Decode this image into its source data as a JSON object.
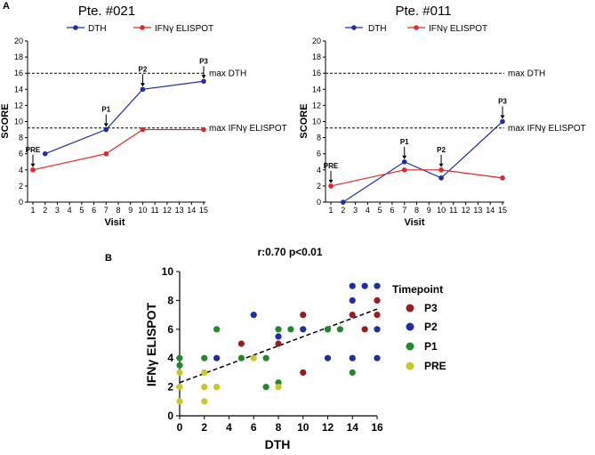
{
  "panels": {
    "a_label": "A",
    "b_label": "B"
  },
  "chart_data": [
    {
      "type": "line",
      "title": "Pte. #021",
      "xlabel": "Visit",
      "ylabel": "SCORE",
      "x_ticks": [
        1,
        2,
        3,
        4,
        5,
        6,
        7,
        8,
        9,
        10,
        11,
        12,
        13,
        14,
        15
      ],
      "y_ticks": [
        0,
        2,
        4,
        6,
        8,
        10,
        12,
        14,
        16,
        18,
        20
      ],
      "xlim": [
        1,
        15
      ],
      "ylim": [
        0,
        20
      ],
      "series": [
        {
          "name": "DTH",
          "color": "#1f2ea6",
          "x": [
            2,
            7,
            10,
            15
          ],
          "y": [
            6,
            9,
            14,
            15
          ]
        },
        {
          "name": "IFNγ ELISPOT",
          "color": "#e3262b",
          "x": [
            1,
            7,
            10,
            15
          ],
          "y": [
            4,
            6,
            9,
            9
          ]
        }
      ],
      "reference_lines": [
        {
          "label": "max DTH",
          "y": 16
        },
        {
          "label": "max IFNγ ELISPOT",
          "y": 9.2
        }
      ],
      "annotations": [
        {
          "text": "PRE",
          "x": 1,
          "y": 4
        },
        {
          "text": "P1",
          "x": 7,
          "y": 9
        },
        {
          "text": "P2",
          "x": 10,
          "y": 14
        },
        {
          "text": "P3",
          "x": 15,
          "y": 15
        }
      ]
    },
    {
      "type": "line",
      "title": "Pte. #011",
      "xlabel": "Visit",
      "ylabel": "SCORE",
      "x_ticks": [
        1,
        2,
        3,
        4,
        5,
        6,
        7,
        8,
        9,
        10,
        11,
        12,
        13,
        14,
        15
      ],
      "y_ticks": [
        0,
        2,
        4,
        6,
        8,
        10,
        12,
        14,
        16,
        18,
        20
      ],
      "xlim": [
        1,
        15
      ],
      "ylim": [
        0,
        20
      ],
      "series": [
        {
          "name": "DTH",
          "color": "#1f2ea6",
          "x": [
            2,
            7,
            10,
            15
          ],
          "y": [
            0,
            5,
            3,
            10
          ]
        },
        {
          "name": "IFNγ ELISPOT",
          "color": "#e3262b",
          "x": [
            1,
            7,
            10,
            15
          ],
          "y": [
            2,
            4,
            4,
            3
          ]
        }
      ],
      "reference_lines": [
        {
          "label": "max DTH",
          "y": 16
        },
        {
          "label": "max IFNγ ELISPOT",
          "y": 9.2
        }
      ],
      "annotations": [
        {
          "text": "PRE",
          "x": 1,
          "y": 2
        },
        {
          "text": "P1",
          "x": 7,
          "y": 5
        },
        {
          "text": "P2",
          "x": 10,
          "y": 4
        },
        {
          "text": "P3",
          "x": 15,
          "y": 10
        }
      ]
    },
    {
      "type": "scatter",
      "title": "r:0.70  p<0.01",
      "xlabel": "DTH",
      "ylabel": "IFNγ ELISPOT",
      "x_ticks": [
        0,
        2,
        4,
        6,
        8,
        10,
        12,
        14,
        16
      ],
      "y_ticks": [
        0,
        2,
        4,
        6,
        8,
        10
      ],
      "xlim": [
        0,
        16
      ],
      "ylim": [
        0,
        10
      ],
      "legend_title": "Timepoint",
      "legend_placement": "right",
      "trend_line": {
        "style": "dashed",
        "x": [
          0,
          16
        ],
        "y": [
          2.3,
          7.4
        ]
      },
      "series": [
        {
          "name": "P3",
          "color": "#9b1b1f",
          "points": [
            [
              5,
              5
            ],
            [
              8,
              5
            ],
            [
              10,
              7
            ],
            [
              10,
              3
            ],
            [
              12,
              6
            ],
            [
              14,
              7
            ],
            [
              15,
              6
            ],
            [
              16,
              8
            ],
            [
              16,
              7
            ]
          ]
        },
        {
          "name": "P2",
          "color": "#1f2ea6",
          "points": [
            [
              3,
              4
            ],
            [
              6,
              7
            ],
            [
              8,
              5.5
            ],
            [
              10,
              6
            ],
            [
              12,
              4
            ],
            [
              14,
              9
            ],
            [
              14,
              8
            ],
            [
              14,
              4
            ],
            [
              15,
              9
            ],
            [
              16,
              9
            ],
            [
              16,
              6
            ],
            [
              16,
              4
            ]
          ]
        },
        {
          "name": "P1",
          "color": "#1f8a2a",
          "points": [
            [
              0,
              4
            ],
            [
              0,
              3.5
            ],
            [
              2,
              4
            ],
            [
              3,
              6
            ],
            [
              5,
              4
            ],
            [
              7,
              4
            ],
            [
              7,
              2
            ],
            [
              8,
              6
            ],
            [
              8,
              2.3
            ],
            [
              9,
              6
            ],
            [
              12,
              6
            ],
            [
              13,
              6
            ],
            [
              14,
              3
            ]
          ]
        },
        {
          "name": "PRE",
          "color": "#c8c82a",
          "points": [
            [
              0,
              3
            ],
            [
              0,
              2
            ],
            [
              0,
              1
            ],
            [
              2,
              3
            ],
            [
              2,
              2
            ],
            [
              2,
              1
            ],
            [
              3,
              2
            ],
            [
              6,
              4
            ],
            [
              8,
              2
            ]
          ]
        }
      ]
    }
  ]
}
